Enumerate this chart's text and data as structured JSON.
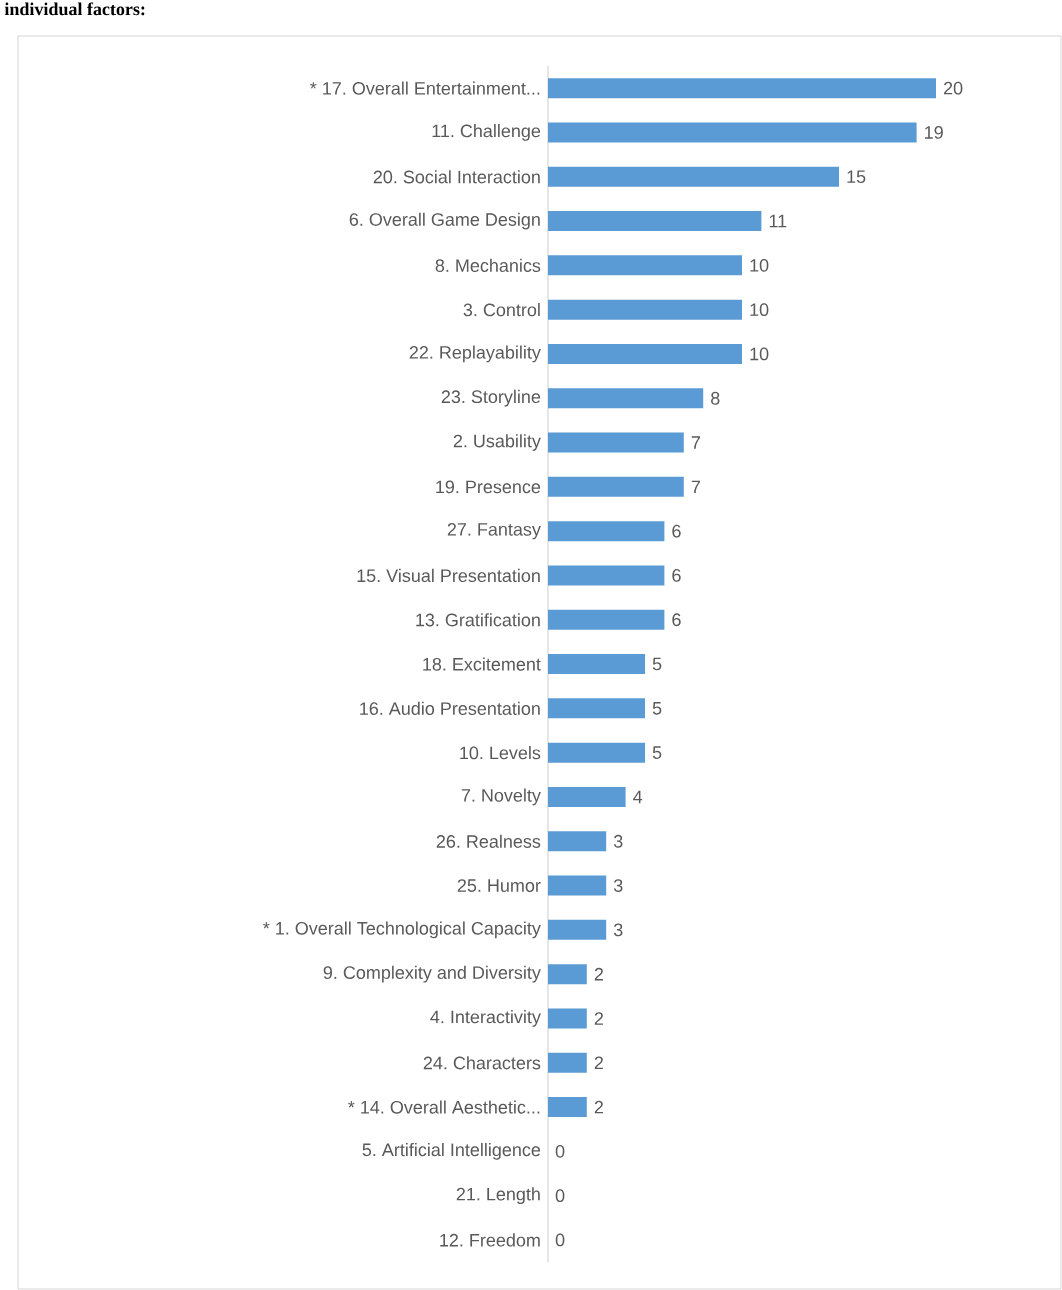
{
  "chart_data": {
    "type": "bar",
    "orientation": "horizontal",
    "color": "#5b9bd5",
    "data_labels": true,
    "annotations": [
      "individual factors:"
    ],
    "categories": [
      "* 17. Overall Entertainment...",
      "11. Challenge",
      "20. Social Interaction",
      "6. Overall Game Design",
      "8. Mechanics",
      "3. Control",
      "22. Replayability",
      "23. Storyline",
      "2. Usability",
      "19. Presence",
      "27. Fantasy",
      "15. Visual Presentation",
      "13. Gratification",
      "18. Excitement",
      "16. Audio Presentation",
      "10. Levels",
      "7. Novelty",
      "26. Realness",
      "25. Humor",
      "* 1. Overall Technological Capacity",
      "9. Complexity and Diversity",
      "4. Interactivity",
      "24. Characters",
      "* 14. Overall Aesthetic...",
      "5. Artificial Intelligence",
      "21. Length",
      "12. Freedom"
    ],
    "values": [
      20,
      19,
      15,
      11,
      10,
      10,
      10,
      8,
      7,
      7,
      6,
      6,
      6,
      5,
      5,
      5,
      4,
      3,
      3,
      3,
      2,
      2,
      2,
      2,
      0,
      0,
      0
    ]
  }
}
